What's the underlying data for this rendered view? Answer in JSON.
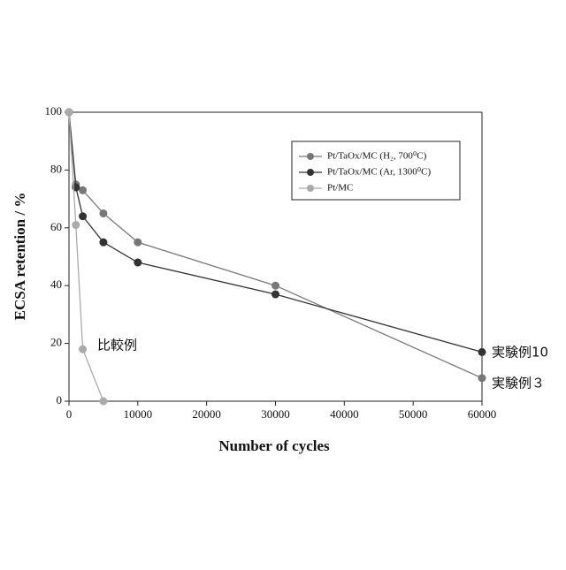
{
  "chart_data": {
    "type": "line",
    "x_label": "Number of cycles",
    "y_label": "ECSA retention / %",
    "xlim": [
      0,
      60000
    ],
    "xticks": [
      0,
      10000,
      20000,
      30000,
      40000,
      50000,
      60000
    ],
    "ylim": [
      0,
      100
    ],
    "yticks": [
      0,
      20,
      40,
      60,
      80,
      100
    ],
    "grid": false,
    "legend": "upper right",
    "series": [
      {
        "name": "Pt/TaOx/MC (H₂, 700⁰C)",
        "color": "#777777",
        "x": [
          0,
          1000,
          2000,
          5000,
          10000,
          30000,
          60000
        ],
        "values": [
          100,
          75,
          73,
          65,
          55,
          40,
          8
        ]
      },
      {
        "name": "Pt/TaOx/MC (Ar, 1300⁰C)",
        "color": "#333333",
        "x": [
          0,
          1000,
          2000,
          5000,
          10000,
          30000,
          60000
        ],
        "values": [
          100,
          74,
          64,
          55,
          48,
          37,
          17
        ]
      },
      {
        "name": "Pt/MC",
        "color": "#aaaaaa",
        "x": [
          0,
          1000,
          2000,
          5000
        ],
        "values": [
          100,
          61,
          18,
          0
        ]
      }
    ],
    "annotations": [
      "比較例",
      "実験例10",
      "実験例３"
    ]
  }
}
